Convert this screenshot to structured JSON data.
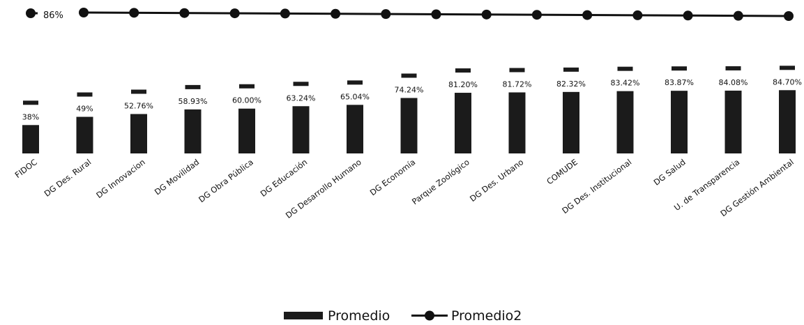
{
  "chart_data": {
    "type": "bar",
    "categories": [
      "FIDOC",
      "DG Des. Rural",
      "DG Innovacion",
      "DG Movilidad",
      "DG Obra Pública",
      "DG Educación",
      "DG Desarrollo Humano",
      "DG Economía",
      "Parque Zoológico",
      "DG Des. Urbano",
      "COMUDE",
      "DG Des. Institucional",
      "DG Salud",
      "U. de Transparencia",
      "DG Gestión Ambiental"
    ],
    "series": [
      {
        "name": "Promedio",
        "type": "bar",
        "values": [
          38,
          49,
          52.76,
          58.93,
          60.0,
          63.24,
          65.04,
          74.24,
          81.2,
          81.72,
          82.32,
          83.42,
          83.87,
          84.08,
          84.7
        ],
        "labels": [
          "38%",
          "49%",
          "52.76%",
          "58.93%",
          "60.00%",
          "63.24%",
          "65.04%",
          "74.24%",
          "81.20%",
          "81.72%",
          "82.32%",
          "83.42%",
          "83.87%",
          "84.08%",
          "84.70%"
        ]
      },
      {
        "name": "Promedio2",
        "type": "line",
        "values": [
          86,
          86,
          86,
          86,
          86,
          86,
          86,
          86,
          86,
          86,
          86,
          86,
          86,
          86,
          86
        ]
      }
    ],
    "line_label": "86%",
    "legend_position": "bottom",
    "grid": false
  }
}
